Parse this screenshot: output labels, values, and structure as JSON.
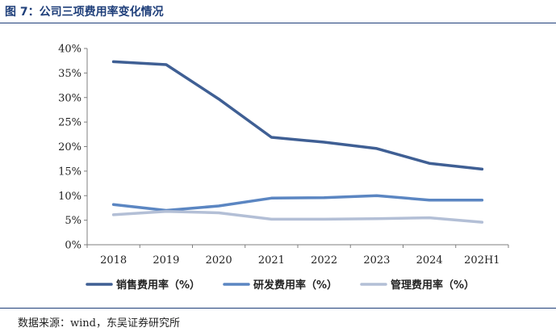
{
  "figure": {
    "title": "图 7：公司三项费用率变化情况",
    "source": "数据来源：wind，东吴证券研究所"
  },
  "chart_data": {
    "type": "line",
    "categories": [
      "2018",
      "2019",
      "2020",
      "2021",
      "2022",
      "2023",
      "2024",
      "202H1"
    ],
    "ylim": [
      0,
      40
    ],
    "yticks": [
      0,
      5,
      10,
      15,
      20,
      25,
      30,
      35,
      40
    ],
    "ytick_labels": [
      "0%",
      "5%",
      "10%",
      "15%",
      "20%",
      "25%",
      "30%",
      "35%",
      "40%"
    ],
    "unit": "%",
    "grid": false,
    "legend_position": "bottom",
    "series": [
      {
        "name": "销售费用率（%）",
        "color": "#3f5f94",
        "values": [
          37.3,
          36.7,
          29.7,
          21.9,
          20.9,
          19.6,
          16.6,
          15.4
        ]
      },
      {
        "name": "研发费用率（%）",
        "color": "#5b86c2",
        "values": [
          8.2,
          7.0,
          7.9,
          9.5,
          9.6,
          10.0,
          9.1,
          9.1
        ]
      },
      {
        "name": "管理费用率（%）",
        "color": "#b3bfd6",
        "values": [
          6.1,
          6.8,
          6.5,
          5.2,
          5.2,
          5.3,
          5.5,
          4.6
        ]
      }
    ]
  }
}
